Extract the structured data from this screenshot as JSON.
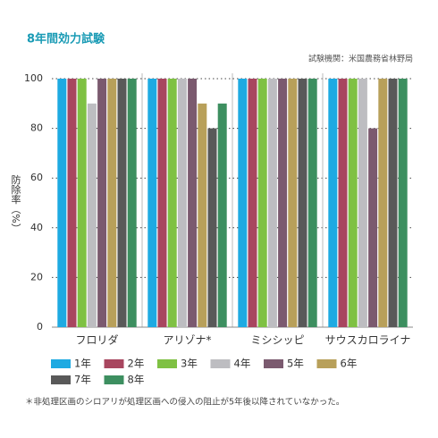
{
  "chart_data": {
    "type": "bar",
    "title": "8年間効力試験",
    "source": "試験機関：米国農務省林野局",
    "y_label": "防除率（%）",
    "categories": [
      "フロリダ",
      "アリゾナ*",
      "ミシシッピ",
      "サウスカロライナ"
    ],
    "series": [
      {
        "name": "1年",
        "color": "#1eaae2",
        "values": [
          100,
          100,
          100,
          100
        ]
      },
      {
        "name": "2年",
        "color": "#a8465f",
        "values": [
          100,
          100,
          100,
          100
        ]
      },
      {
        "name": "3年",
        "color": "#7fc143",
        "values": [
          100,
          100,
          100,
          100
        ]
      },
      {
        "name": "4年",
        "color": "#bdbdc1",
        "values": [
          90,
          100,
          100,
          100
        ]
      },
      {
        "name": "5年",
        "color": "#7b5a6f",
        "values": [
          100,
          100,
          100,
          80
        ]
      },
      {
        "name": "6年",
        "color": "#b8a05a",
        "values": [
          100,
          90,
          100,
          100
        ]
      },
      {
        "name": "7年",
        "color": "#595959",
        "values": [
          100,
          80,
          100,
          100
        ]
      },
      {
        "name": "8年",
        "color": "#3d8f60",
        "values": [
          100,
          90,
          100,
          100
        ]
      }
    ],
    "ylim": [
      0,
      100
    ],
    "yticks": [
      0,
      20,
      40,
      60,
      80,
      100
    ],
    "grid": true,
    "footnote": "＊非処理区画のシロアリが処理区画への侵入の阻止が5年後以降されていなかった。"
  }
}
